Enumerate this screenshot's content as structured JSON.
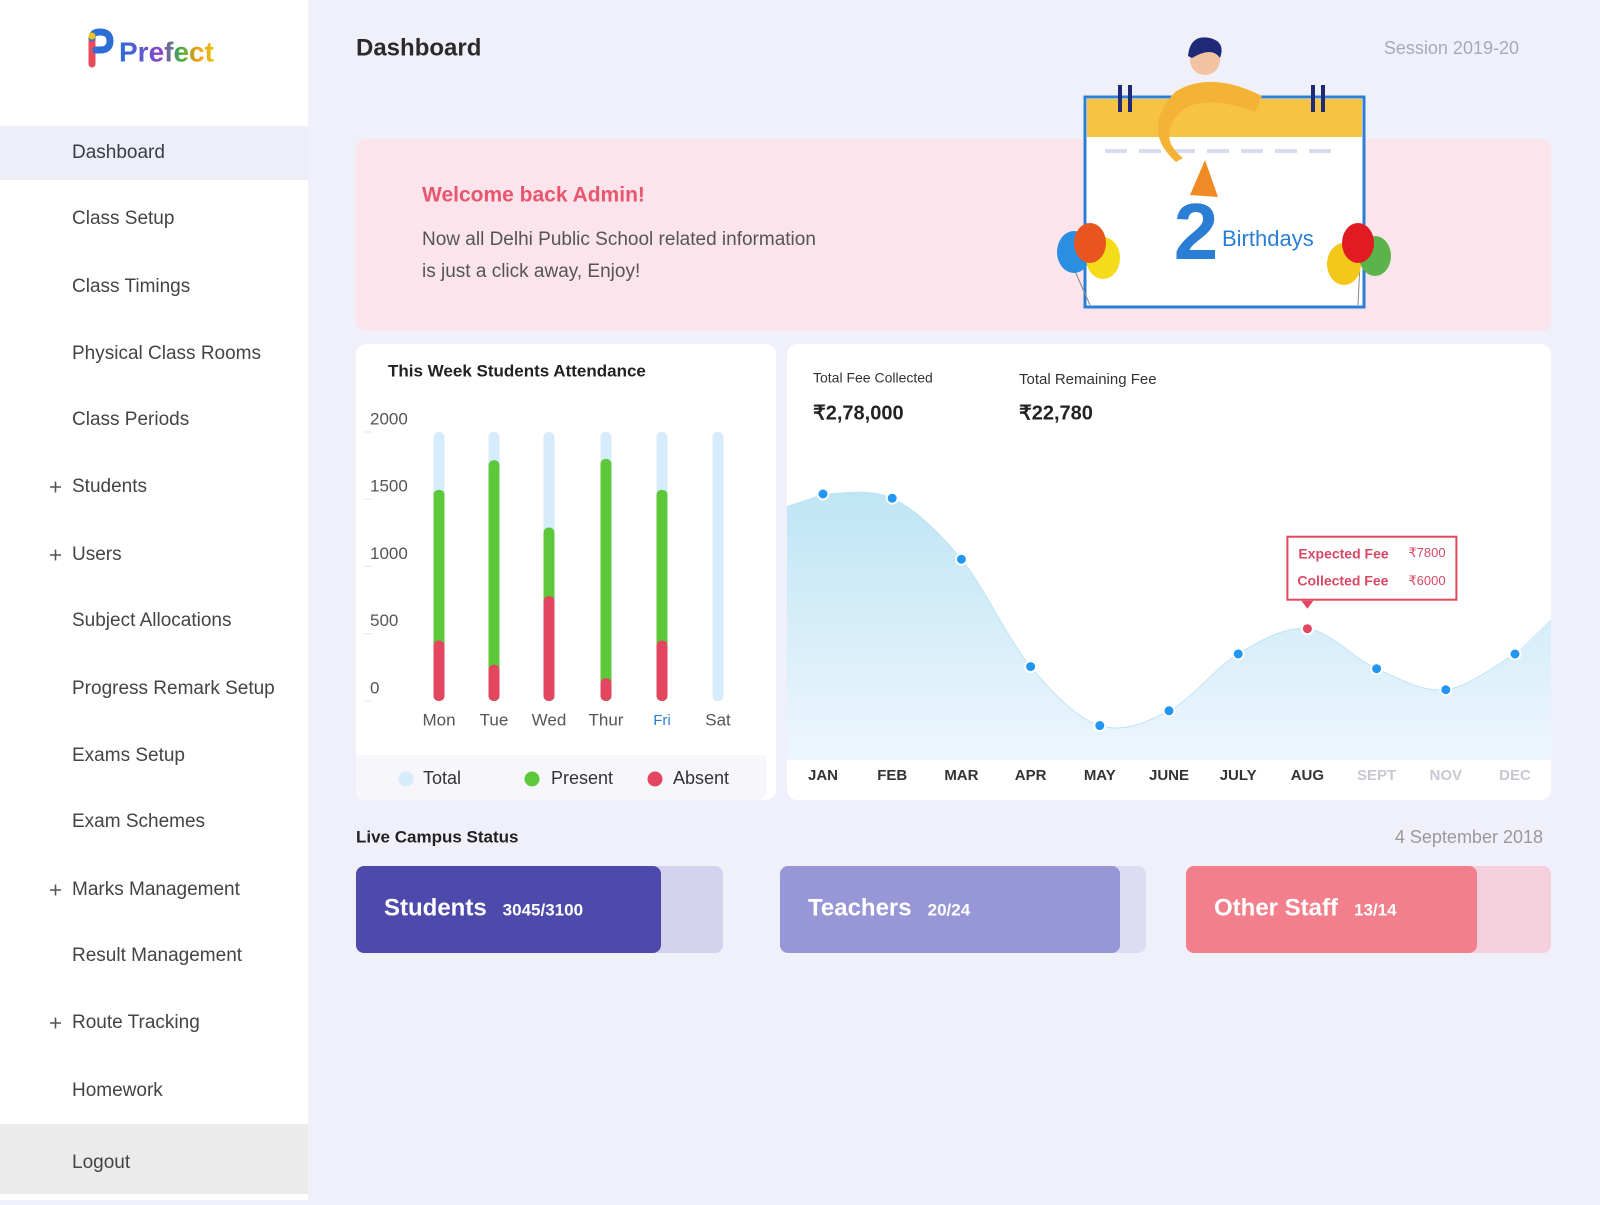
{
  "brand": "Prefect",
  "sidebar": {
    "active_index": 0,
    "items": [
      {
        "label": "Dashboard",
        "expandable": false
      },
      {
        "label": "Class Setup",
        "expandable": false
      },
      {
        "label": "Class Timings",
        "expandable": false
      },
      {
        "label": "Physical Class Rooms",
        "expandable": false
      },
      {
        "label": "Class Periods",
        "expandable": false
      },
      {
        "label": "Students",
        "expandable": true
      },
      {
        "label": "Users",
        "expandable": true
      },
      {
        "label": "Subject Allocations",
        "expandable": false
      },
      {
        "label": "Progress Remark Setup",
        "expandable": false
      },
      {
        "label": "Exams Setup",
        "expandable": false
      },
      {
        "label": "Exam Schemes",
        "expandable": false
      },
      {
        "label": "Marks Management",
        "expandable": true
      },
      {
        "label": "Result Management",
        "expandable": false
      },
      {
        "label": "Route Tracking",
        "expandable": true
      },
      {
        "label": "Homework",
        "expandable": false
      }
    ],
    "logout": "Logout"
  },
  "header": {
    "title": "Dashboard",
    "session": "Session 2019-20"
  },
  "welcome": {
    "title": "Welcome back Admin!",
    "lines": [
      "Now all Delhi Public School related information",
      "is just a click away, Enjoy!"
    ],
    "birthday_count": 2,
    "birthday_label": "Birthdays"
  },
  "attendance": {
    "type": "bar",
    "title": "This Week Students Attendance",
    "categories": [
      "Mon",
      "Tue",
      "Wed",
      "Thur",
      "Fri",
      "Sat"
    ],
    "highlight_index": 4,
    "series": [
      {
        "name": "Total",
        "color": "#d6ebfb",
        "values": [
          2000,
          2000,
          2000,
          2000,
          2000,
          2000
        ]
      },
      {
        "name": "Present",
        "color": "#5cc83a",
        "values": [
          1570,
          1790,
          1290,
          1800,
          1570,
          0
        ]
      },
      {
        "name": "Absent",
        "color": "#e2475f",
        "values": [
          450,
          270,
          780,
          170,
          450,
          0
        ]
      }
    ],
    "ylim": [
      0,
      2000
    ],
    "yticks": [
      0,
      500,
      1000,
      1500,
      2000
    ]
  },
  "fees": {
    "collected_label": "Total Fee Collected",
    "collected": "₹2,78,000",
    "remaining_label": "Total Remaining Fee",
    "remaining": "₹22,780"
  },
  "fee_chart": {
    "type": "area",
    "categories": [
      "JAN",
      "FEB",
      "MAR",
      "APR",
      "MAY",
      "JUNE",
      "JULY",
      "AUG",
      "SEPT",
      "NOV",
      "DEC"
    ],
    "values": [
      12400,
      12200,
      9300,
      4200,
      1400,
      2100,
      4800,
      6000,
      4100,
      3100,
      4800
    ],
    "color": "#2196f3",
    "muted_from": 8,
    "tooltip": {
      "index": 7,
      "expected_label": "Expected Fee",
      "expected": "₹7800",
      "collected_label": "Collected Fee",
      "collected": "₹6000"
    }
  },
  "campus": {
    "title": "Live Campus Status",
    "date": "4 September 2018",
    "cards": [
      {
        "label": "Students",
        "count": "3045/3100",
        "color": "#4e4aab",
        "track": "#d4d2ee"
      },
      {
        "label": "Teachers",
        "count": "20/24",
        "color": "#9797d8",
        "track": "#dddcf3"
      },
      {
        "label": "Other Staff",
        "count": "13/14",
        "color": "#f27f8b",
        "track": "#f4d0dd"
      }
    ]
  }
}
